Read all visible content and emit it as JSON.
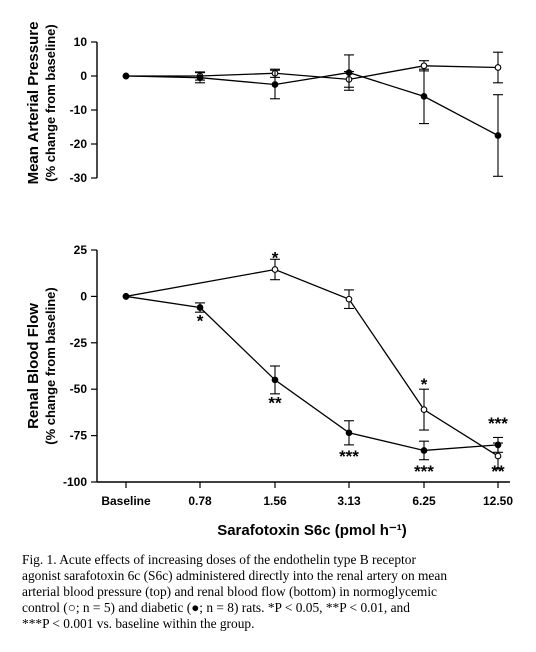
{
  "chart_data": [
    {
      "type": "line",
      "ylabel_line1": "Mean Arterial Pressure",
      "ylabel_line2": "(% change from baseline)",
      "ylim": [
        -30,
        10
      ],
      "yticks": [
        10,
        0,
        -10,
        -20,
        -30
      ],
      "categories": [
        "Baseline",
        "0.78",
        "1.56",
        "3.13",
        "6.25",
        "12.50"
      ],
      "series": [
        {
          "marker": "open-circle",
          "values": [
            0,
            0,
            0.8,
            -1,
            3,
            2.5
          ],
          "errors": [
            0,
            1.2,
            1.2,
            2.3,
            1.5,
            4.5
          ]
        },
        {
          "marker": "filled-circle",
          "values": [
            0,
            -0.5,
            -2.5,
            1,
            -6,
            -17.5
          ],
          "errors": [
            0,
            1.5,
            4.2,
            5.2,
            8,
            12
          ]
        }
      ],
      "annotations": []
    },
    {
      "type": "line",
      "ylabel_line1": "Renal Blood Flow",
      "ylabel_line2": "(% change from baseline)",
      "ylim": [
        -100,
        25
      ],
      "yticks": [
        25,
        0,
        -25,
        -50,
        -75,
        -100
      ],
      "categories": [
        "Baseline",
        "0.78",
        "1.56",
        "3.13",
        "6.25",
        "12.50"
      ],
      "xlabel": "Sarafotoxin S6c (pmol h⁻¹)",
      "series": [
        {
          "marker": "open-circle",
          "values": [
            0,
            null,
            14.5,
            -1.5,
            -61,
            -86
          ],
          "errors": [
            0,
            0,
            5.5,
            5,
            11,
            7
          ]
        },
        {
          "marker": "filled-circle",
          "values": [
            0,
            -6,
            -45,
            -73.5,
            -83,
            -80
          ],
          "errors": [
            0,
            2.5,
            7.5,
            6.5,
            5,
            4
          ]
        }
      ],
      "annotations": [
        {
          "category": "1.56",
          "y": 22,
          "text": "*"
        },
        {
          "category": "0.78",
          "y": -12,
          "text": "*"
        },
        {
          "category": "1.56",
          "y": -56,
          "text": "**"
        },
        {
          "category": "3.13",
          "y": -85,
          "text": "***"
        },
        {
          "category": "6.25",
          "y": -46,
          "text": "*"
        },
        {
          "category": "6.25",
          "y": -93,
          "text": "***"
        },
        {
          "category": "12.50",
          "y": -67,
          "text": "***"
        },
        {
          "category": "12.50",
          "y": -93,
          "text": "**"
        }
      ]
    }
  ],
  "caption": {
    "line1": "Fig. 1. Acute effects of increasing doses of the endothelin type B receptor",
    "line2": "agonist sarafotoxin 6c (S6c) administered directly into the renal artery on mean",
    "line3": "arterial blood pressure (top) and renal blood flow (bottom) in normoglycemic",
    "line4": "control (○; n = 5) and diabetic (●; n = 8) rats. *P < 0.05, **P < 0.01, and",
    "line5": "***P < 0.001 vs. baseline within the group."
  }
}
